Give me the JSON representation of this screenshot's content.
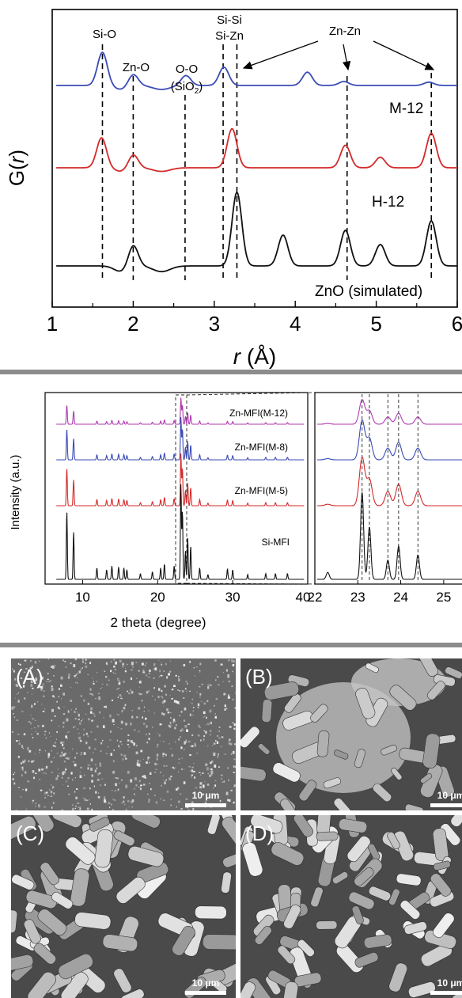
{
  "pdf_chart": {
    "ylabel_prefix": "G(",
    "ylabel_var": "r",
    "ylabel_suffix": ")",
    "xlabel_var": "r",
    "xlabel_unit": " (Å)",
    "xticks": [
      "1",
      "2",
      "3",
      "4",
      "5",
      "6"
    ],
    "peak_labels": {
      "si_o": "Si-O",
      "zn_o": "Zn-O",
      "o_o_line1": "O-O",
      "o_o_line2_pre": "(SiO",
      "o_o_line2_sub": "2",
      "o_o_line2_post": ")",
      "si_si": "Si-Si",
      "si_zn": "Si-Zn",
      "zn_zn": "Zn-Zn"
    },
    "series_labels": [
      "M-12",
      "H-12",
      "ZnO (simulated)"
    ]
  },
  "xrd_chart": {
    "ylabel": "Intensity (a.u.)",
    "xlabel": "2 theta (degree)",
    "xticks_main": [
      "10",
      "20",
      "30",
      "40"
    ],
    "xticks_zoom": [
      "22",
      "23",
      "24",
      "25"
    ],
    "series_labels": [
      "Zn-MFI(M-12)",
      "Zn-MFI(M-8)",
      "Zn-MFI(M-5)",
      "Si-MFI"
    ]
  },
  "sem_panels": [
    {
      "letter": "(A)",
      "scale": "10 μm"
    },
    {
      "letter": "(B)",
      "scale": "10 μm"
    },
    {
      "letter": "(C)",
      "scale": "10 μm"
    },
    {
      "letter": "(D)",
      "scale": "10 μm"
    }
  ],
  "chart_data": [
    {
      "type": "line",
      "title": "",
      "xlabel": "r (Å)",
      "ylabel": "G(r)",
      "xlim": [
        1,
        6
      ],
      "yaxis_ticks": "none",
      "series": [
        {
          "name": "M-12",
          "color": "#3a4bb5",
          "peaks": [
            [
              1.62,
              1.0
            ],
            [
              2.0,
              0.35
            ],
            [
              2.65,
              0.3
            ],
            [
              3.12,
              0.55
            ],
            [
              4.15,
              0.4
            ],
            [
              4.6,
              0.12
            ],
            [
              5.65,
              0.1
            ]
          ],
          "baseline_level": "top"
        },
        {
          "name": "H-12",
          "color": "#d42a2a",
          "peaks": [
            [
              1.61,
              1.0
            ],
            [
              2.0,
              0.45
            ],
            [
              3.22,
              1.3
            ],
            [
              4.62,
              0.75
            ],
            [
              5.05,
              0.35
            ],
            [
              5.68,
              1.15
            ]
          ],
          "baseline_level": "middle"
        },
        {
          "name": "ZnO (simulated)",
          "color": "#111111",
          "peaks": [
            [
              2.0,
              0.45
            ],
            [
              3.28,
              1.55
            ],
            [
              3.85,
              0.65
            ],
            [
              4.62,
              0.75
            ],
            [
              5.05,
              0.45
            ],
            [
              5.68,
              0.95
            ]
          ],
          "baseline_level": "bottom"
        }
      ],
      "reference_lines_r": [
        1.62,
        2.0,
        2.64,
        3.11,
        3.28,
        4.64,
        5.68
      ]
    },
    {
      "type": "line",
      "title": "",
      "xlabel": "2 theta (degree)",
      "ylabel": "Intensity (a.u.)",
      "xlim": [
        5,
        40
      ],
      "inset_xlim": [
        22,
        25.5
      ],
      "inset_reference_lines": [
        23.1,
        23.27,
        23.7,
        23.95,
        24.4
      ],
      "series": [
        {
          "name": "Zn-MFI(M-12)",
          "color": "#b03ab0"
        },
        {
          "name": "Zn-MFI(M-8)",
          "color": "#3a4bb5"
        },
        {
          "name": "Zn-MFI(M-5)",
          "color": "#d42a2a"
        },
        {
          "name": "Si-MFI",
          "color": "#111111"
        }
      ],
      "main_peaks_2theta": [
        7.9,
        8.8,
        11.9,
        13.2,
        13.9,
        14.8,
        15.5,
        15.9,
        17.7,
        19.3,
        20.4,
        20.9,
        22.2,
        23.1,
        23.3,
        23.7,
        24.0,
        24.4,
        25.6,
        26.7,
        29.3,
        30.0,
        32.0,
        34.4,
        35.7,
        37.3
      ]
    }
  ]
}
